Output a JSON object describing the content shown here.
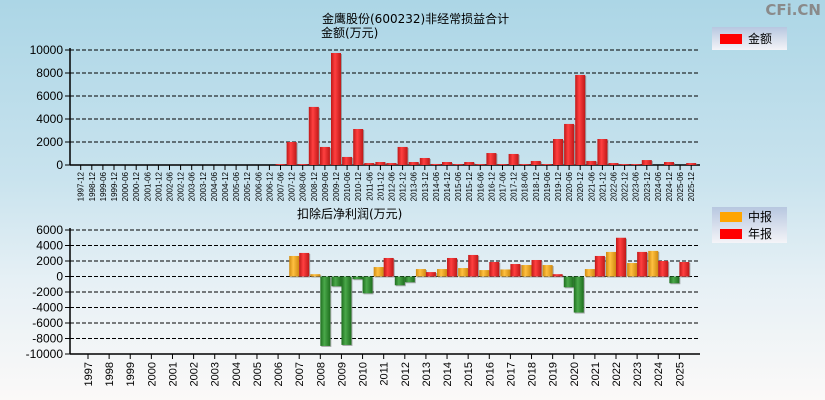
{
  "watermark": "CFi.CN",
  "chart_data": [
    {
      "type": "bar",
      "title": "金鹰股份(600232)非经常损益合计",
      "ylabel": "金额(万元)",
      "ylim": [
        0,
        10000
      ],
      "yticks": [
        0,
        2000,
        4000,
        6000,
        8000,
        10000
      ],
      "grid": true,
      "legend_position": "top-right",
      "categories": [
        "1997-12",
        "1998-12",
        "1999-06",
        "1999-12",
        "2000-06",
        "2000-12",
        "2001-06",
        "2001-12",
        "2002-06",
        "2002-12",
        "2003-06",
        "2003-12",
        "2004-06",
        "2004-12",
        "2005-06",
        "2005-12",
        "2006-06",
        "2006-12",
        "2007-06",
        "2007-12",
        "2008-06",
        "2008-12",
        "2009-06",
        "2009-12",
        "2010-06",
        "2010-12",
        "2011-06",
        "2011-12",
        "2012-06",
        "2012-12",
        "2013-06",
        "2013-12",
        "2014-06",
        "2014-12",
        "2015-06",
        "2015-12",
        "2016-06",
        "2016-12",
        "2017-06",
        "2017-12",
        "2018-06",
        "2018-12",
        "2019-06",
        "2019-12",
        "2020-06",
        "2020-12",
        "2021-06",
        "2021-12",
        "2022-06",
        "2022-12",
        "2023-06",
        "2023-12",
        "2024-06",
        "2024-12",
        "2025-06",
        "2025-12"
      ],
      "series": [
        {
          "name": "金额",
          "color": "#ff0000",
          "values": [
            0,
            0,
            0,
            0,
            0,
            0,
            0,
            0,
            0,
            0,
            0,
            0,
            0,
            0,
            0,
            0,
            0,
            0,
            80,
            2000,
            80,
            5050,
            1570,
            9740,
            700,
            3130,
            170,
            260,
            170,
            1570,
            260,
            610,
            90,
            260,
            80,
            260,
            80,
            1040,
            80,
            960,
            80,
            350,
            80,
            2260,
            3570,
            7830,
            350,
            2260,
            170,
            80,
            80,
            430,
            0,
            260,
            0,
            170
          ]
        }
      ]
    },
    {
      "type": "bar",
      "title": "扣除后净利润(万元)",
      "ylim": [
        -10000,
        6000
      ],
      "yticks": [
        -10000,
        -8000,
        -6000,
        -4000,
        -2000,
        0,
        2000,
        4000,
        6000
      ],
      "grid": true,
      "legend_position": "top-right",
      "negative_color": "#2e8b2e",
      "categories": [
        "1997",
        "1998",
        "1999",
        "2000",
        "2001",
        "2002",
        "2003",
        "2004",
        "2005",
        "2006",
        "2007",
        "2008",
        "2009",
        "2010",
        "2011",
        "2012",
        "2013",
        "2014",
        "2015",
        "2016",
        "2017",
        "2018",
        "2019",
        "2020",
        "2021",
        "2022",
        "2023",
        "2024",
        "2025"
      ],
      "series": [
        {
          "name": "中报",
          "color": "#ffa500",
          "values": [
            null,
            null,
            null,
            null,
            null,
            null,
            null,
            null,
            null,
            null,
            2650,
            300,
            -1260,
            -350,
            1220,
            -1130,
            960,
            960,
            1090,
            830,
            910,
            1480,
            1480,
            -1390,
            960,
            3170,
            1740,
            3300,
            -870
          ]
        },
        {
          "name": "年报",
          "color": "#ff0000",
          "values": [
            null,
            null,
            null,
            null,
            null,
            null,
            null,
            null,
            null,
            null,
            3040,
            -8960,
            -8830,
            -2170,
            2390,
            -740,
            570,
            2390,
            2780,
            1870,
            1610,
            2130,
            300,
            -4650,
            2650,
            5000,
            3170,
            2000,
            1870
          ]
        }
      ]
    }
  ]
}
